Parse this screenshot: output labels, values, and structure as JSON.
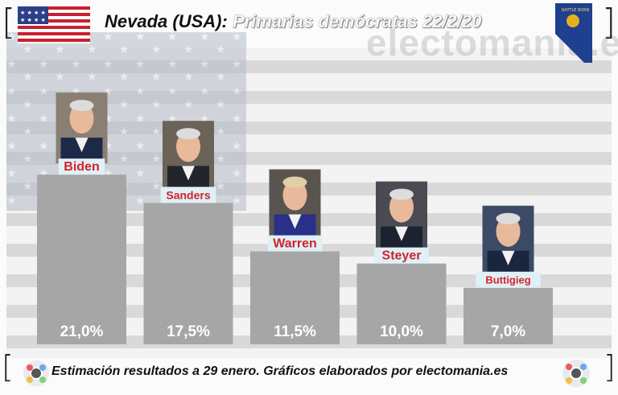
{
  "header": {
    "title_prefix": "Nevada (USA):",
    "title_main": "Primarias demócratas 22/2/20",
    "watermark": "electomania.es",
    "flag_icon": "us-flag-icon",
    "state_icon": "nevada-flag-icon"
  },
  "footer": {
    "text": "Estimación resultados a 29 enero. Gráficos elaborados por electomania.es",
    "logo_icon": "electomania-logo-icon"
  },
  "colors": {
    "bar": "#a6a6a6",
    "name_label": "#d2232a",
    "name_label_bg": "#dff0f6"
  },
  "chart_data": {
    "type": "bar",
    "title": "Nevada (USA): Primarias demócratas 22/2/20",
    "categories": [
      "Biden",
      "Sanders",
      "Warren",
      "Steyer",
      "Buttigieg"
    ],
    "values": [
      21.0,
      17.5,
      11.5,
      10.0,
      7.0
    ],
    "value_labels": [
      "21,0%",
      "17,5%",
      "11,5%",
      "10,0%",
      "7,0%"
    ],
    "unit": "%",
    "ylim": [
      0,
      23.7
    ],
    "grid": false,
    "legend": "none"
  }
}
